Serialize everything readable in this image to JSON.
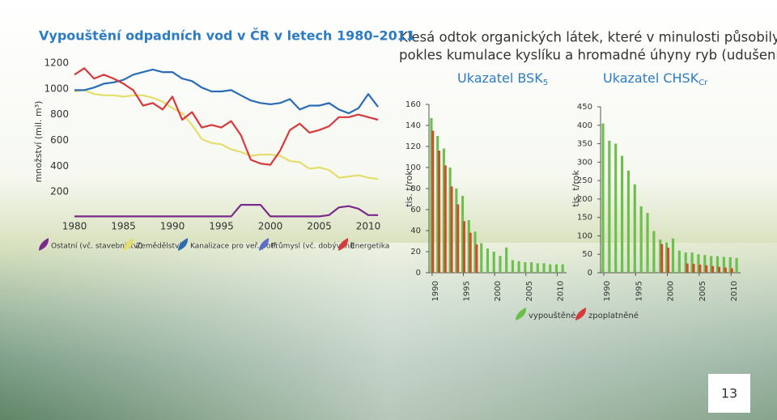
{
  "paragraph": [
    "Klesá odtok organických látek, které v minulosti působily",
    "pokles kumulace kyslíku a hromadné úhyny ryb (udušení)."
  ],
  "page_number": 13,
  "chart_data": [
    {
      "type": "line",
      "title": "Vypouštění odpadních vod v ČR v letech 1980–2011",
      "ylabel": "množství (mil. m³)",
      "x": [
        1980,
        1981,
        1982,
        1983,
        1984,
        1985,
        1986,
        1987,
        1988,
        1989,
        1990,
        1991,
        1992,
        1993,
        1994,
        1995,
        1996,
        1997,
        1998,
        1999,
        2000,
        2001,
        2002,
        2003,
        2004,
        2005,
        2006,
        2007,
        2008,
        2009,
        2010,
        2011
      ],
      "xlim": [
        1978,
        2012
      ],
      "xticks": [
        1980,
        1985,
        1990,
        1995,
        2000,
        2005,
        2010
      ],
      "ylim": [
        0,
        1250
      ],
      "yticks": [
        200,
        400,
        600,
        800,
        1000,
        1200
      ],
      "series": [
        {
          "name": "Ostatní (vč. stavebnictví)",
          "color": "#7a2a8c",
          "values": [
            10,
            10,
            10,
            10,
            10,
            10,
            10,
            10,
            10,
            10,
            10,
            10,
            10,
            10,
            10,
            10,
            10,
            100,
            100,
            100,
            10,
            10,
            10,
            10,
            10,
            10,
            20,
            80,
            90,
            70,
            20,
            20
          ]
        },
        {
          "name": "Zemědělství",
          "color": "#e4df6c",
          "values": [
            980,
            990,
            960,
            950,
            950,
            940,
            950,
            950,
            930,
            900,
            850,
            810,
            720,
            610,
            580,
            570,
            530,
            510,
            480,
            490,
            490,
            480,
            440,
            430,
            380,
            390,
            370,
            310,
            320,
            330,
            310,
            300
          ]
        },
        {
          "name": "Kanalizace pro veř. potř.",
          "color": "#2b6cb5",
          "values": [
            990,
            990,
            1010,
            1040,
            1050,
            1070,
            1110,
            1130,
            1150,
            1130,
            1130,
            1080,
            1060,
            1010,
            980,
            980,
            990,
            950,
            910,
            890,
            880,
            890,
            920,
            840,
            870,
            870,
            890,
            840,
            810,
            850,
            960,
            860
          ]
        },
        {
          "name": "Průmysl (vč. dobývání)",
          "color": "#5a70c8",
          "values": [
            null,
            null,
            null,
            null,
            null,
            null,
            null,
            null,
            null,
            null,
            null,
            null,
            null,
            null,
            null,
            null,
            null,
            null,
            null,
            null,
            null,
            null,
            null,
            null,
            null,
            null,
            null,
            null,
            null,
            null,
            null,
            null
          ]
        },
        {
          "name": "Energetika",
          "color": "#d63a3a",
          "values": [
            1110,
            1160,
            1080,
            1110,
            1080,
            1040,
            990,
            870,
            890,
            840,
            940,
            760,
            820,
            700,
            720,
            700,
            750,
            640,
            450,
            420,
            410,
            520,
            680,
            730,
            660,
            680,
            710,
            780,
            780,
            800,
            780,
            760
          ]
        }
      ]
    },
    {
      "type": "bar",
      "title": "Ukazatel BSK",
      "title_subscript": "5",
      "ylabel": "tis. t/rok",
      "x": [
        1990,
        1991,
        1992,
        1993,
        1994,
        1995,
        1996,
        1997,
        1998,
        1999,
        2000,
        2001,
        2002,
        2003,
        2004,
        2005,
        2006,
        2007,
        2008,
        2009,
        2010,
        2011
      ],
      "xlim": [
        1989.5,
        2011.5
      ],
      "xticks": [
        1990,
        1995,
        2000,
        2005,
        2010
      ],
      "ylim": [
        0,
        160
      ],
      "yticks": [
        0,
        20,
        40,
        60,
        80,
        100,
        120,
        140,
        160
      ],
      "series": [
        {
          "name": "vypouštěné",
          "color": "#6cbf4a",
          "values": [
            147,
            130,
            118,
            100,
            80,
            73,
            50,
            39,
            28,
            23,
            20,
            16,
            24,
            12,
            11,
            10,
            10,
            9,
            9,
            8,
            8,
            8
          ]
        },
        {
          "name": "zpoplatněné",
          "color": "#c8502e",
          "values": [
            135,
            116,
            102,
            82,
            65,
            49,
            38,
            27,
            null,
            null,
            null,
            null,
            null,
            null,
            null,
            null,
            null,
            null,
            null,
            null,
            null,
            null
          ]
        }
      ]
    },
    {
      "type": "bar",
      "title": "Ukazatel CHSK",
      "title_subscript": "Cr",
      "ylabel": "tis. t/rok",
      "x": [
        1990,
        1991,
        1992,
        1993,
        1994,
        1995,
        1996,
        1997,
        1998,
        1999,
        2000,
        2001,
        2002,
        2003,
        2004,
        2005,
        2006,
        2007,
        2008,
        2009,
        2010,
        2011
      ],
      "xlim": [
        1989.5,
        2011.5
      ],
      "xticks": [
        1990,
        1995,
        2000,
        2005,
        2010
      ],
      "ylim": [
        0,
        450
      ],
      "yticks": [
        0,
        50,
        100,
        150,
        200,
        250,
        300,
        350,
        400,
        450
      ],
      "series": [
        {
          "color": "#6cbf4a",
          "values": [
            405,
            358,
            350,
            317,
            277,
            240,
            180,
            162,
            113,
            90,
            82,
            93,
            60,
            55,
            55,
            50,
            48,
            45,
            45,
            43,
            42,
            40
          ]
        },
        {
          "color": "#c8502e",
          "values": [
            null,
            null,
            null,
            null,
            null,
            null,
            null,
            null,
            null,
            78,
            68,
            null,
            null,
            25,
            24,
            22,
            20,
            18,
            16,
            14,
            12,
            null
          ]
        }
      ]
    }
  ]
}
